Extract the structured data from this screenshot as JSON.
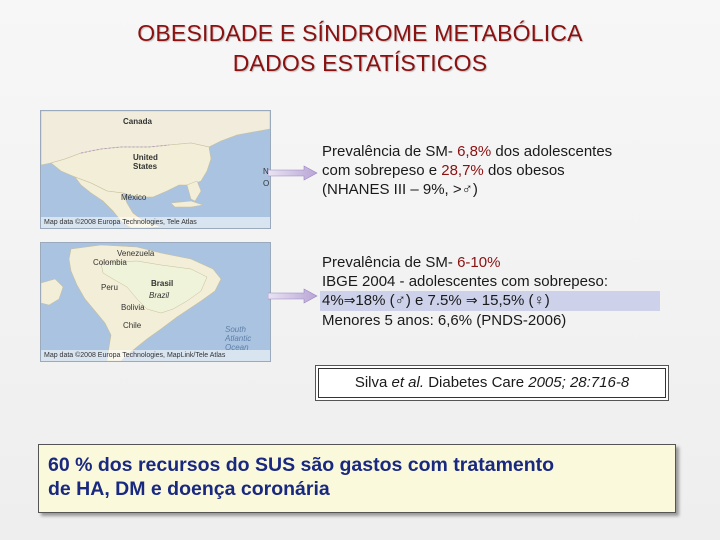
{
  "title": {
    "line1": "OBESIDADE E SÍNDROME METABÓLICA",
    "line2": "DADOS ESTATÍSTICOS"
  },
  "map_north": {
    "credit": "Map data ©2008 Europa Technologies, Tele Atlas",
    "labels": {
      "canada": "Canada",
      "us": "United States",
      "mexico": "México",
      "edge_n": "N",
      "edge_o": "O"
    }
  },
  "map_south": {
    "credit": "Map data ©2008 Europa Technologies, MapLink/Tele Atlas",
    "labels": {
      "venezuela": "Venezuela",
      "colombia": "Colombia",
      "peru": "Peru",
      "brasil": "Brasil",
      "brazil": "Brazil",
      "bolivia": "Bolivia",
      "chile": "Chile",
      "ocean": "South Atlantic Ocean"
    }
  },
  "block1": {
    "l1_a": "Prevalência de SM- ",
    "l1_b": "6,8%",
    "l1_c": " dos adolescentes",
    "l2_a": "com sobrepeso e ",
    "l2_b": "28,7%",
    "l2_c": " dos obesos",
    "l3": "(NHANES III – 9%, >♂)"
  },
  "block2": {
    "l1_a": "Prevalência de SM- ",
    "l1_b": "6-10%",
    "l2": "IBGE 2004 - adolescentes com sobrepeso:",
    "l3_a": "4%",
    "arrow": "⇒",
    "l3_b": "18% (♂)  e 7.5% ",
    "l3_c": " 15,5% (♀)",
    "l4": "Menores 5 anos: 6,6% (PNDS-2006)"
  },
  "citation": {
    "author": "Silva ",
    "etal": "et al.",
    "journal": " Diabetes Care ",
    "ref": "2005; 28:716-8"
  },
  "callout": {
    "line1": "60 % dos recursos do SUS são gastos com tratamento",
    "line2": "de HA, DM e doença coronária"
  },
  "colors": {
    "title": "#8b1010",
    "callout_text": "#1a2980",
    "callout_bg": "#fbf9dc",
    "band": "#cdd2ea"
  }
}
